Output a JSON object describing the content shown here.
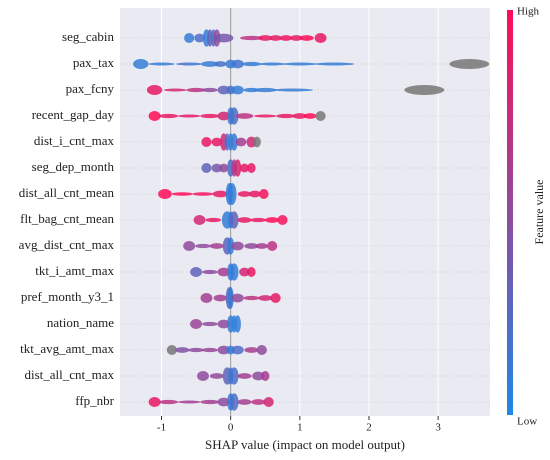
{
  "chart_data": {
    "type": "beeswarm",
    "xlabel": "SHAP value (impact on model output)",
    "xlim": [
      -1.6,
      3.75
    ],
    "xticks": [
      -1,
      0,
      1,
      2,
      3
    ],
    "grid": true,
    "colorbar": {
      "label": "Feature value",
      "high": "High",
      "low": "Low",
      "low_color": "#1e88e5",
      "high_color": "#ff0d57",
      "missing_color": "#777777"
    },
    "series": [
      {
        "name": "seg_cabin",
        "x": [
          -0.6,
          -0.45,
          -0.35,
          -0.3,
          -0.25,
          -0.2,
          -0.1,
          0.3,
          0.5,
          0.65,
          0.8,
          0.95,
          1.1,
          1.3
        ],
        "feature_values": [
          0.1,
          0.2,
          0.1,
          0.3,
          0.2,
          0.5,
          0.4,
          0.7,
          0.9,
          0.9,
          0.95,
          0.9,
          1,
          0.9
        ]
      },
      {
        "name": "pax_tax",
        "x": [
          -1.3,
          -1.0,
          -0.6,
          -0.3,
          -0.15,
          0,
          0.1,
          0.3,
          0.6,
          1.0,
          1.5,
          3.45
        ],
        "feature_values": [
          0.1,
          0.1,
          0.15,
          0.1,
          0.2,
          0.1,
          0.15,
          0.1,
          0.1,
          0.1,
          0.1,
          null
        ]
      },
      {
        "name": "pax_fcny",
        "x": [
          -1.1,
          -0.8,
          -0.5,
          -0.3,
          -0.1,
          0,
          0.1,
          0.3,
          0.5,
          0.9,
          2.8
        ],
        "feature_values": [
          0.9,
          0.8,
          0.7,
          0.5,
          0.3,
          0.2,
          0.1,
          0.1,
          0.1,
          0.1,
          null
        ]
      },
      {
        "name": "recent_gap_day",
        "x": [
          -1.1,
          -0.9,
          -0.6,
          -0.3,
          -0.1,
          0,
          0.05,
          0.2,
          0.5,
          0.8,
          1.0,
          1.15,
          1.3
        ],
        "feature_values": [
          1,
          0.9,
          0.9,
          0.9,
          0.8,
          0.1,
          0.2,
          0.7,
          0.9,
          0.9,
          0.9,
          1,
          null
        ]
      },
      {
        "name": "dist_i_cnt_max",
        "x": [
          -0.35,
          -0.2,
          -0.1,
          -0.05,
          0,
          0.05,
          0.15,
          0.3,
          0.38
        ],
        "feature_values": [
          0.9,
          0.9,
          0.8,
          0.2,
          0.1,
          0.1,
          0.6,
          0.8,
          null
        ]
      },
      {
        "name": "seg_dep_month",
        "x": [
          -0.35,
          -0.2,
          -0.1,
          0,
          0.05,
          0.1,
          0.2,
          0.3
        ],
        "feature_values": [
          0.3,
          0.4,
          0.5,
          0.2,
          0.6,
          0.8,
          0.9,
          0.9
        ]
      },
      {
        "name": "dist_all_cnt_mean",
        "x": [
          -0.95,
          -0.7,
          -0.4,
          -0.15,
          -0.02,
          0,
          0.02,
          0.2,
          0.35,
          0.48
        ],
        "feature_values": [
          1,
          1,
          0.95,
          0.9,
          0.1,
          0.05,
          0.1,
          0.9,
          0.9,
          0.95
        ]
      },
      {
        "name": "flt_bag_cnt_mean",
        "x": [
          -0.45,
          -0.25,
          -0.05,
          0,
          0.05,
          0.2,
          0.4,
          0.6,
          0.75
        ],
        "feature_values": [
          0.8,
          0.9,
          0.1,
          0.05,
          0.3,
          0.9,
          0.9,
          1,
          0.95
        ]
      },
      {
        "name": "avg_dist_cnt_max",
        "x": [
          -0.6,
          -0.4,
          -0.2,
          -0.05,
          0,
          0.1,
          0.3,
          0.45,
          0.6
        ],
        "feature_values": [
          0.5,
          0.5,
          0.6,
          0.3,
          0.1,
          0.5,
          0.5,
          0.6,
          0.7
        ]
      },
      {
        "name": "tkt_i_amt_max",
        "x": [
          -0.5,
          -0.3,
          -0.1,
          0,
          0.05,
          0.2,
          0.3
        ],
        "feature_values": [
          0.3,
          0.5,
          0.6,
          0.1,
          0.1,
          0.8,
          0.9
        ]
      },
      {
        "name": "pref_month_y3_1",
        "x": [
          -0.35,
          -0.15,
          -0.02,
          0,
          0.1,
          0.3,
          0.5,
          0.65
        ],
        "feature_values": [
          0.6,
          0.6,
          0.3,
          0.1,
          0.5,
          0.7,
          0.8,
          0.9
        ]
      },
      {
        "name": "nation_name",
        "x": [
          -0.5,
          -0.3,
          -0.1,
          0,
          0.05,
          0.1
        ],
        "feature_values": [
          0.55,
          0.5,
          0.5,
          0.1,
          0.05,
          0.1
        ]
      },
      {
        "name": "tkt_avg_amt_max",
        "x": [
          -0.85,
          -0.7,
          -0.5,
          -0.3,
          -0.1,
          0,
          0.1,
          0.3,
          0.45
        ],
        "feature_values": [
          null,
          0.45,
          0.5,
          0.55,
          0.5,
          0.1,
          0.2,
          0.6,
          0.5
        ]
      },
      {
        "name": "dist_all_cnt_max",
        "x": [
          -0.4,
          -0.2,
          -0.05,
          0,
          0.05,
          0.2,
          0.4,
          0.5
        ],
        "feature_values": [
          0.5,
          0.5,
          0.3,
          0.1,
          0.2,
          0.6,
          0.5,
          0.6
        ]
      },
      {
        "name": "ffp_nbr",
        "x": [
          -1.1,
          -0.9,
          -0.6,
          -0.3,
          -0.1,
          0,
          0.05,
          0.2,
          0.4,
          0.55
        ],
        "feature_values": [
          0.9,
          0.7,
          0.6,
          0.6,
          0.5,
          0.1,
          0.2,
          0.6,
          0.7,
          0.8
        ]
      }
    ]
  }
}
